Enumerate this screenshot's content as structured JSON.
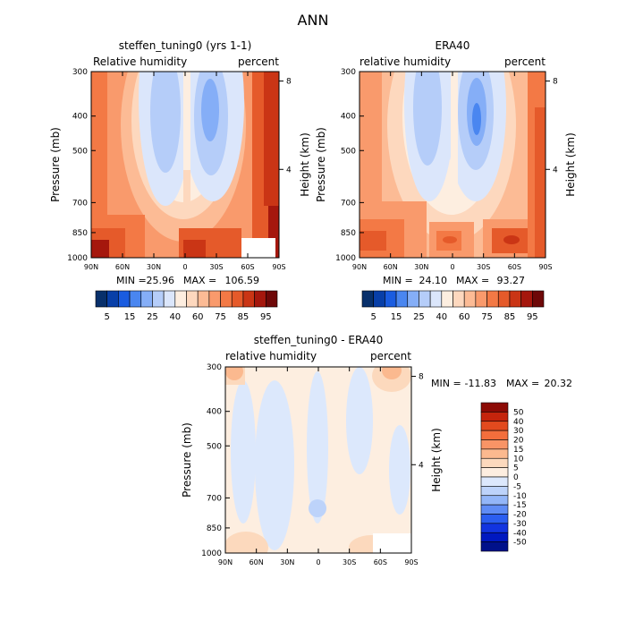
{
  "page": {
    "title": "ANN"
  },
  "colors": {
    "rh_levels": [
      "#08306b",
      "#083fa8",
      "#1a5ce0",
      "#4a86f0",
      "#85aef7",
      "#b5cdf9",
      "#dbe6fb",
      "#fdeee0",
      "#fdd8be",
      "#fcbb95",
      "#f99a6c",
      "#f37945",
      "#e55a2a",
      "#ca3515",
      "#a5170d",
      "#6e0808"
    ],
    "diff_levels": [
      "#00118a",
      "#0018c0",
      "#1234e0",
      "#2b5ef0",
      "#5f8cf5",
      "#93b6f8",
      "#bdd3fa",
      "#dce8fc",
      "#fdeee0",
      "#fcd9bd",
      "#fbb98f",
      "#f99466",
      "#f36e3c",
      "#e24a1e",
      "#c5240c",
      "#8c0a05"
    ]
  },
  "chart_data": [
    {
      "type": "heatmap",
      "title": "steffen_tuning0 (yrs 1-1)",
      "left_label": "Relative humidity",
      "right_label": "percent",
      "ylabel": "Pressure (mb)",
      "y2label": "Height (km)",
      "x_tick_labels": [
        "90N",
        "60N",
        "30N",
        "0",
        "30S",
        "60S",
        "90S"
      ],
      "y_tick_labels": [
        "300",
        "400",
        "500",
        "700",
        "850",
        "1000"
      ],
      "y2_tick_labels": [
        "8",
        "4"
      ],
      "ylim": [
        1000,
        300
      ],
      "stats": {
        "min_label": "MIN =",
        "min": "25.96",
        "max_label": "MAX =",
        "max": "106.59"
      },
      "colorbar": {
        "orientation": "horizontal",
        "levels": [
          5,
          10,
          15,
          20,
          25,
          30,
          40,
          50,
          60,
          70,
          75,
          80,
          85,
          90,
          95
        ],
        "tick_labels": [
          "5",
          "15",
          "25",
          "40",
          "60",
          "75",
          "85",
          "95"
        ]
      }
    },
    {
      "type": "heatmap",
      "title": "ERA40",
      "left_label": "relative humidity",
      "right_label": "percent",
      "ylabel": "Pressure (mb)",
      "y2label": "Height (km)",
      "x_tick_labels": [
        "90N",
        "60N",
        "30N",
        "0",
        "30S",
        "60S",
        "90S"
      ],
      "y_tick_labels": [
        "300",
        "400",
        "500",
        "700",
        "850",
        "1000"
      ],
      "y2_tick_labels": [
        "8",
        "4"
      ],
      "ylim": [
        1000,
        300
      ],
      "stats": {
        "min_label": "MIN =",
        "min": "24.10",
        "max_label": "MAX =",
        "max": "93.27"
      },
      "colorbar": {
        "orientation": "horizontal",
        "levels": [
          5,
          10,
          15,
          20,
          25,
          30,
          40,
          50,
          60,
          70,
          75,
          80,
          85,
          90,
          95
        ],
        "tick_labels": [
          "5",
          "15",
          "25",
          "40",
          "60",
          "75",
          "85",
          "95"
        ]
      }
    },
    {
      "type": "heatmap",
      "title": "steffen_tuning0 - ERA40",
      "left_label": "relative humidity",
      "right_label": "percent",
      "ylabel": "Pressure (mb)",
      "y2label": "Height (km)",
      "x_tick_labels": [
        "90N",
        "60N",
        "30N",
        "0",
        "30S",
        "60S",
        "90S"
      ],
      "y_tick_labels": [
        "300",
        "400",
        "500",
        "700",
        "850",
        "1000"
      ],
      "y2_tick_labels": [
        "8",
        "4"
      ],
      "ylim": [
        1000,
        300
      ],
      "stats": {
        "min_label": "MIN =",
        "min": "-11.83",
        "max_label": "MAX =",
        "max": "20.32"
      },
      "colorbar": {
        "orientation": "vertical",
        "levels": [
          -50,
          -40,
          -30,
          -20,
          -15,
          -10,
          -5,
          0,
          5,
          10,
          15,
          20,
          30,
          40,
          50
        ],
        "tick_labels": [
          "50",
          "40",
          "30",
          "20",
          "15",
          "10",
          "5",
          "0",
          "-5",
          "-10",
          "-15",
          "-20",
          "-30",
          "-40",
          "-50"
        ]
      }
    }
  ]
}
